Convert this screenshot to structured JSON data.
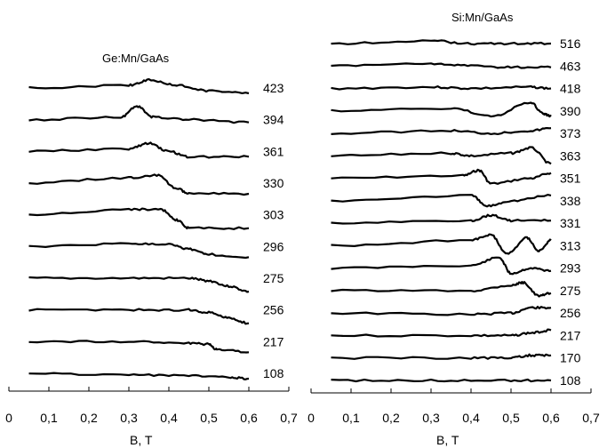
{
  "chart_data": [
    {
      "type": "line",
      "title": "Ge:Mn/GaAs",
      "xlabel": "B, T",
      "ylabel": "",
      "xlim": [
        0,
        0.7
      ],
      "xticks": [
        "0",
        "0,1",
        "0,2",
        "0,3",
        "0,4",
        "0,5",
        "0,6",
        "0,7"
      ],
      "grid": false,
      "series": [
        {
          "name": "423",
          "x": [
            0.05,
            0.3,
            0.35,
            0.42,
            0.5,
            0.6
          ],
          "y": [
            0,
            0.01,
            0.03,
            0.01,
            -0.01,
            -0.02
          ]
        },
        {
          "name": "394",
          "x": [
            0.05,
            0.28,
            0.32,
            0.36,
            0.45,
            0.6
          ],
          "y": [
            0,
            0.01,
            0.05,
            0.01,
            0,
            -0.01
          ]
        },
        {
          "name": "361",
          "x": [
            0.05,
            0.3,
            0.35,
            0.4,
            0.45,
            0.6
          ],
          "y": [
            0,
            0.01,
            0.03,
            0,
            -0.02,
            -0.02
          ]
        },
        {
          "name": "330",
          "x": [
            0.05,
            0.3,
            0.37,
            0.42,
            0.45,
            0.6
          ],
          "y": [
            0,
            0.02,
            0.03,
            -0.02,
            -0.04,
            -0.04
          ]
        },
        {
          "name": "303",
          "x": [
            0.05,
            0.3,
            0.38,
            0.42,
            0.45,
            0.6
          ],
          "y": [
            0,
            0.02,
            0.02,
            -0.02,
            -0.05,
            -0.05
          ]
        },
        {
          "name": "296",
          "x": [
            0.05,
            0.3,
            0.4,
            0.45,
            0.5,
            0.6
          ],
          "y": [
            0,
            0.01,
            0.01,
            -0.01,
            -0.03,
            -0.04
          ]
        },
        {
          "name": "275",
          "x": [
            0.05,
            0.3,
            0.45,
            0.5,
            0.55,
            0.6
          ],
          "y": [
            0,
            0,
            0,
            -0.01,
            -0.03,
            -0.05
          ]
        },
        {
          "name": "256",
          "x": [
            0.05,
            0.3,
            0.45,
            0.5,
            0.55,
            0.6
          ],
          "y": [
            0,
            0,
            0,
            -0.01,
            -0.03,
            -0.05
          ]
        },
        {
          "name": "217",
          "x": [
            0.05,
            0.3,
            0.45,
            0.5,
            0.52,
            0.6
          ],
          "y": [
            0,
            0,
            -0.005,
            -0.01,
            -0.03,
            -0.04
          ]
        },
        {
          "name": "108",
          "x": [
            0.05,
            0.3,
            0.45,
            0.55,
            0.6
          ],
          "y": [
            0,
            -0.005,
            -0.01,
            -0.015,
            -0.02
          ]
        }
      ]
    },
    {
      "type": "line",
      "title": "Si:Mn/GaAs",
      "xlabel": "B, T",
      "ylabel": "",
      "xlim": [
        0,
        0.7
      ],
      "xticks": [
        "0",
        "0,1",
        "0,2",
        "0,3",
        "0,4",
        "0,5",
        "0,6",
        "0,7"
      ],
      "grid": false,
      "series": [
        {
          "name": "516",
          "x": [
            0.05,
            0.3,
            0.4,
            0.5,
            0.6
          ],
          "y": [
            0,
            0.01,
            0,
            0,
            0
          ]
        },
        {
          "name": "463",
          "x": [
            0.05,
            0.3,
            0.4,
            0.5,
            0.6
          ],
          "y": [
            0,
            0.01,
            0,
            -0.005,
            -0.005
          ]
        },
        {
          "name": "418",
          "x": [
            0.05,
            0.3,
            0.4,
            0.55,
            0.6
          ],
          "y": [
            0,
            0.005,
            0,
            0.005,
            0
          ]
        },
        {
          "name": "390",
          "x": [
            0.05,
            0.35,
            0.45,
            0.55,
            0.58,
            0.6
          ],
          "y": [
            0,
            0.01,
            -0.02,
            0.03,
            -0.01,
            -0.02
          ]
        },
        {
          "name": "373",
          "x": [
            0.05,
            0.35,
            0.45,
            0.55,
            0.6
          ],
          "y": [
            0,
            0.01,
            0,
            0.01,
            0.02
          ]
        },
        {
          "name": "363",
          "x": [
            0.05,
            0.35,
            0.4,
            0.5,
            0.55,
            0.6
          ],
          "y": [
            0,
            0.01,
            0,
            0.01,
            0.03,
            -0.03
          ]
        },
        {
          "name": "351",
          "x": [
            0.05,
            0.38,
            0.42,
            0.45,
            0.55,
            0.6
          ],
          "y": [
            0,
            0.01,
            0.03,
            -0.02,
            0,
            0.02
          ]
        },
        {
          "name": "338",
          "x": [
            0.05,
            0.4,
            0.44,
            0.5,
            0.6
          ],
          "y": [
            0,
            0.02,
            -0.02,
            0,
            0.02
          ]
        },
        {
          "name": "331",
          "x": [
            0.05,
            0.4,
            0.45,
            0.5,
            0.6
          ],
          "y": [
            0,
            0.01,
            0.03,
            0.01,
            0.01
          ]
        },
        {
          "name": "313",
          "x": [
            0.05,
            0.4,
            0.45,
            0.49,
            0.54,
            0.57,
            0.6
          ],
          "y": [
            0,
            0.02,
            0.04,
            -0.03,
            0.03,
            -0.02,
            0.02
          ]
        },
        {
          "name": "293",
          "x": [
            0.05,
            0.4,
            0.47,
            0.5,
            0.55,
            0.6
          ],
          "y": [
            0,
            0.01,
            0.04,
            -0.02,
            0,
            -0.01
          ]
        },
        {
          "name": "275",
          "x": [
            0.05,
            0.4,
            0.5,
            0.53,
            0.57,
            0.6
          ],
          "y": [
            0,
            0,
            0.02,
            0.03,
            -0.02,
            -0.01
          ]
        },
        {
          "name": "256",
          "x": [
            0.05,
            0.4,
            0.5,
            0.55,
            0.6
          ],
          "y": [
            0,
            -0.005,
            0,
            0.02,
            0.02
          ]
        },
        {
          "name": "217",
          "x": [
            0.05,
            0.4,
            0.5,
            0.55,
            0.6
          ],
          "y": [
            0,
            0,
            0,
            0.01,
            0.02
          ]
        },
        {
          "name": "170",
          "x": [
            0.05,
            0.4,
            0.5,
            0.55,
            0.6
          ],
          "y": [
            0,
            0,
            0,
            0.01,
            0.01
          ]
        },
        {
          "name": "108",
          "x": [
            0.05,
            0.3,
            0.5,
            0.6
          ],
          "y": [
            0,
            0,
            0,
            0
          ]
        }
      ]
    }
  ]
}
